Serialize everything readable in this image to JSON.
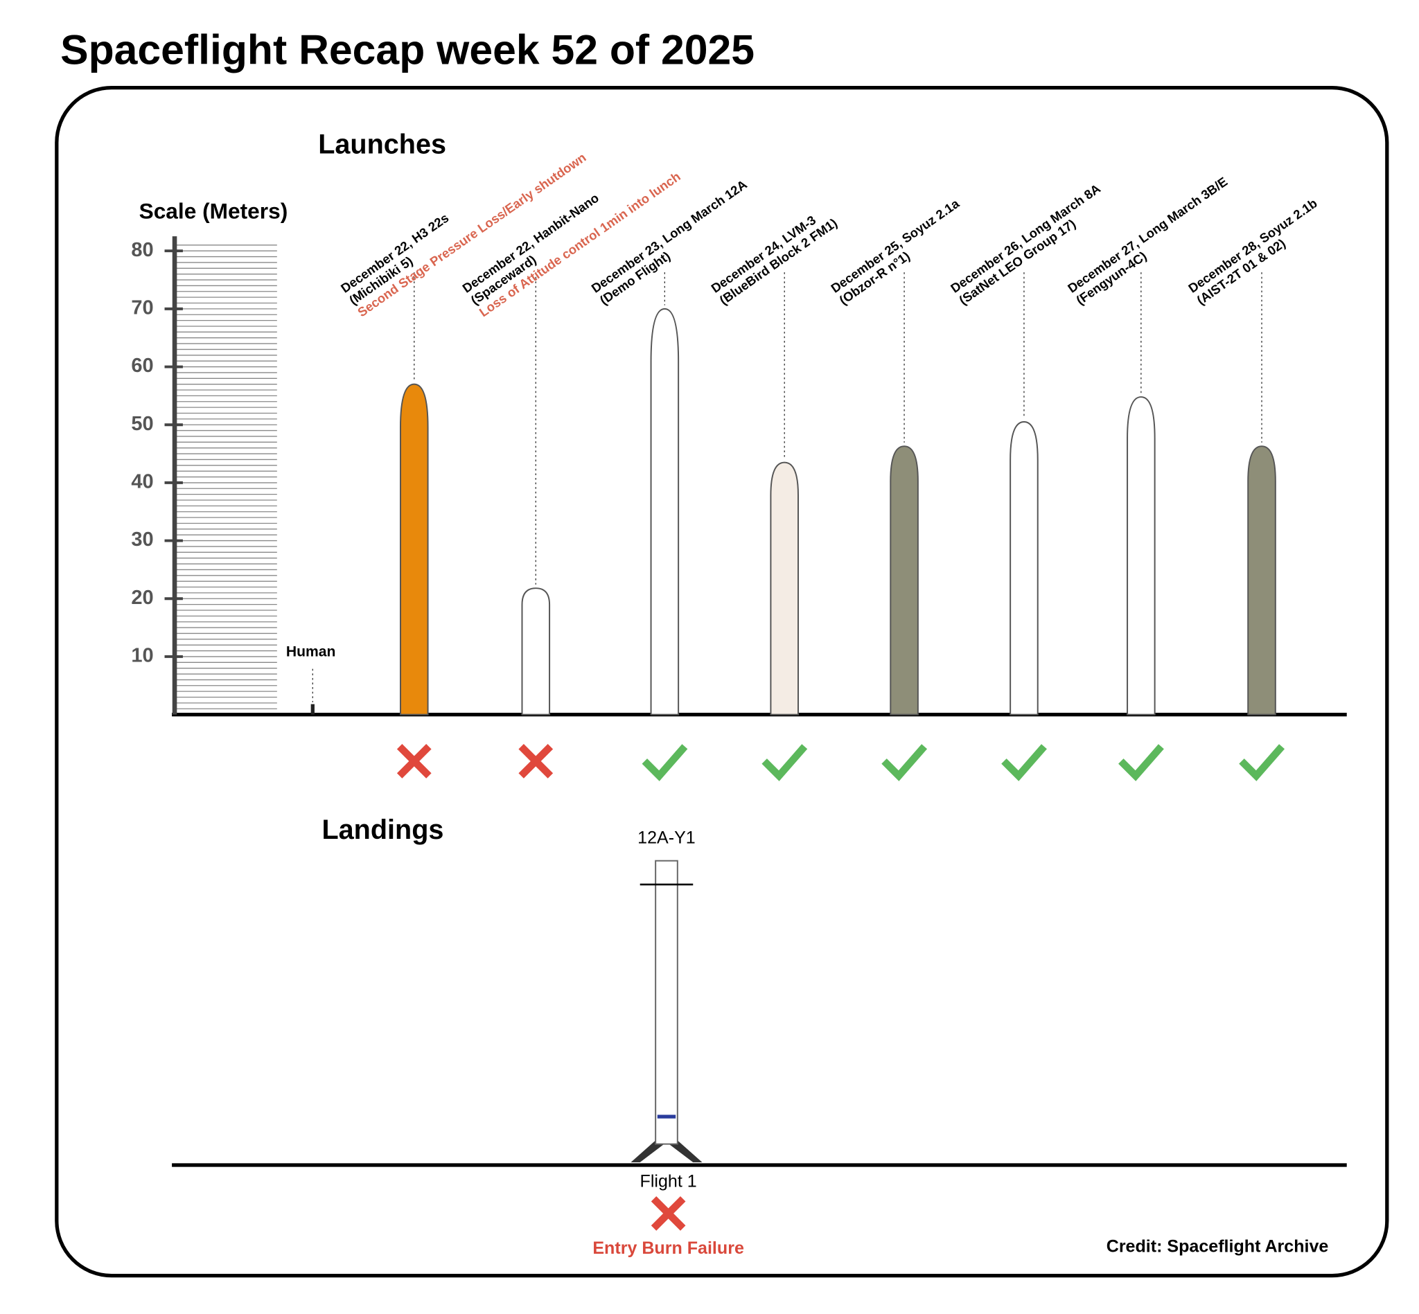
{
  "title": "Spaceflight Recap week 52 of 2025",
  "launches": {
    "heading": "Launches",
    "scale_label": "Scale (Meters)",
    "ylim": [
      0,
      80
    ],
    "yticks": [
      10,
      20,
      30,
      40,
      50,
      60,
      70,
      80
    ],
    "human": {
      "label": "Human",
      "height": 1.8
    },
    "rockets": [
      {
        "lines": [
          "December 22, H3 22s",
          "(Michibiki 5)"
        ],
        "note": "Second Stage Pressure Loss/Early shutdown",
        "height": 57,
        "color": "#e8890c",
        "success": false
      },
      {
        "lines": [
          "December 22, Hanbit-Nano",
          "(Spaceward)"
        ],
        "note": "Loss of Attitude control 1min into lunch",
        "height": 21.8,
        "color": "#ffffff",
        "success": false
      },
      {
        "lines": [
          "December 23, Long March 12A",
          "(Demo Flight)"
        ],
        "height": 70,
        "color": "#ffffff",
        "success": true
      },
      {
        "lines": [
          "December 24, LVM-3",
          "(BlueBird Block 2 FM1)"
        ],
        "height": 43.5,
        "color": "#f4ece4",
        "success": true
      },
      {
        "lines": [
          "December 25, Soyuz 2.1a",
          "(Obzor-R n°1)"
        ],
        "height": 46.3,
        "color": "#8e8e78",
        "success": true
      },
      {
        "lines": [
          "December 26, Long March 8A",
          "(SatNet LEO Group 17)"
        ],
        "height": 50.5,
        "color": "#ffffff",
        "success": true
      },
      {
        "lines": [
          "December 27, Long March 3B/E",
          "(Fengyun-4C)"
        ],
        "height": 54.8,
        "color": "#ffffff",
        "success": true
      },
      {
        "lines": [
          "December 28, Soyuz 2.1b",
          "(AIST-2T 01 & 02)"
        ],
        "height": 46.3,
        "color": "#8e8e78",
        "success": true
      }
    ]
  },
  "landings": {
    "heading": "Landings",
    "booster": "12A-Y1",
    "flight": "Flight 1",
    "success": false,
    "result": "Entry Burn Failure"
  },
  "credit": "Credit: Spaceflight Archive"
}
